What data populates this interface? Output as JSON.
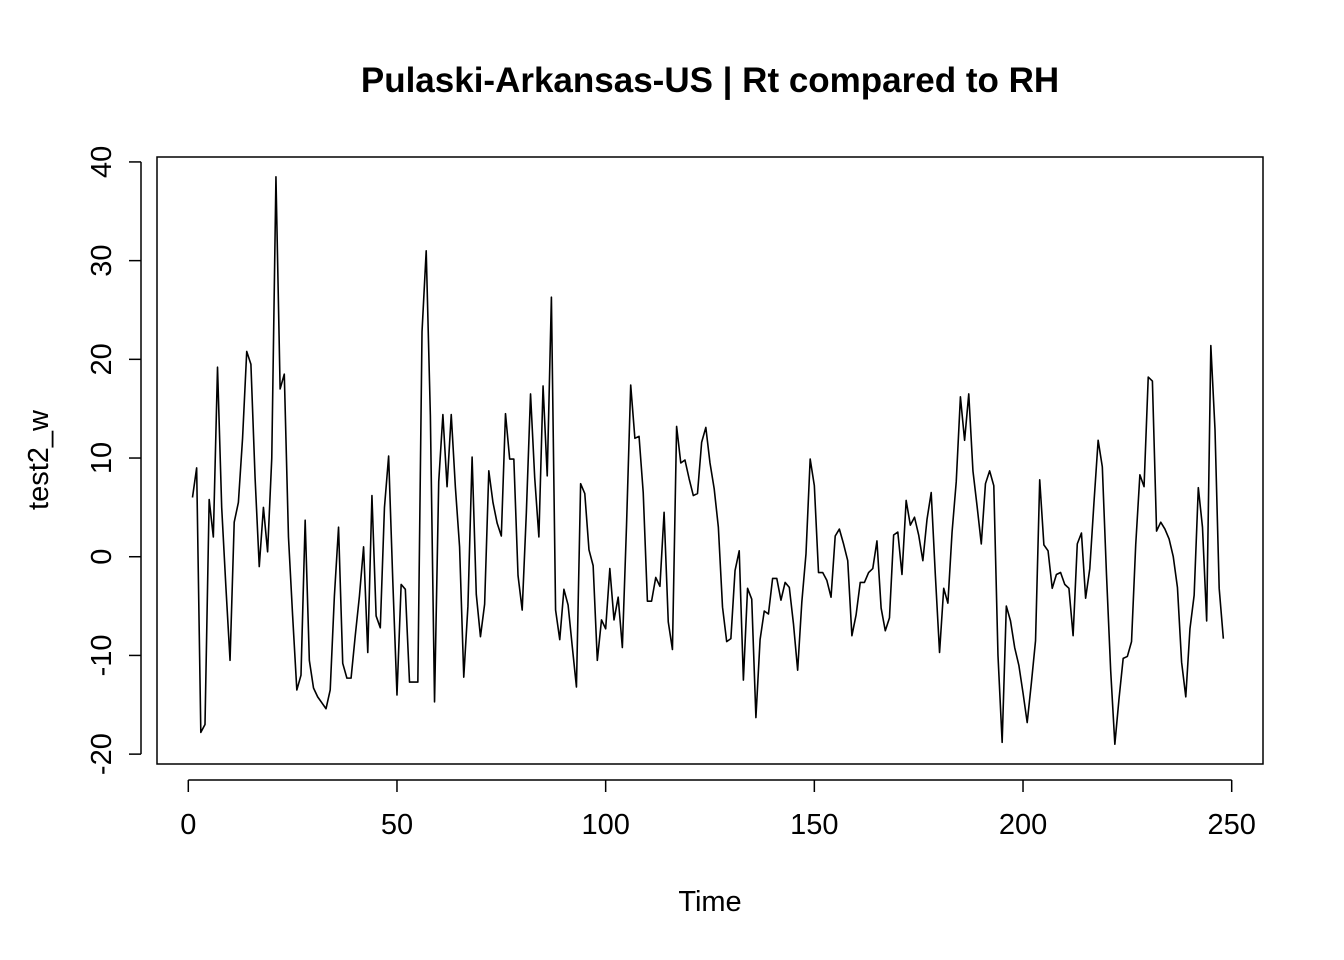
{
  "chart_data": {
    "type": "line",
    "title": "Pulaski-Arkansas-US | Rt compared to RH",
    "xlabel": "Time",
    "ylabel": "test2_w",
    "xlim": [
      -7.5,
      257.5
    ],
    "ylim": [
      -21,
      40.5
    ],
    "xticks": [
      0,
      50,
      100,
      150,
      200,
      250
    ],
    "yticks": [
      -20,
      -10,
      0,
      10,
      20,
      30,
      40
    ],
    "xtick_labels": [
      "0",
      "50",
      "100",
      "150",
      "200",
      "250"
    ],
    "ytick_labels": [
      "-20",
      "-10",
      "0",
      "10",
      "20",
      "30",
      "40"
    ],
    "grid": false,
    "series": [
      {
        "color": "#000000",
        "x": [
          1,
          2,
          3,
          4,
          5,
          6,
          7,
          8,
          9,
          10,
          11,
          12,
          13,
          14,
          15,
          16,
          17,
          18,
          19,
          20,
          21,
          22,
          23,
          24,
          25,
          26,
          27,
          28,
          29,
          30,
          31,
          32,
          33,
          34,
          35,
          36,
          37,
          38,
          39,
          40,
          41,
          42,
          43,
          44,
          45,
          46,
          47,
          48,
          49,
          50,
          51,
          52,
          53,
          54,
          55,
          56,
          57,
          58,
          59,
          60,
          61,
          62,
          63,
          64,
          65,
          66,
          67,
          68,
          69,
          70,
          71,
          72,
          73,
          74,
          75,
          76,
          77,
          78,
          79,
          80,
          81,
          82,
          83,
          84,
          85,
          86,
          87,
          88,
          89,
          90,
          91,
          92,
          93,
          94,
          95,
          96,
          97,
          98,
          99,
          100,
          101,
          102,
          103,
          104,
          105,
          106,
          107,
          108,
          109,
          110,
          111,
          112,
          113,
          114,
          115,
          116,
          117,
          118,
          119,
          120,
          121,
          122,
          123,
          124,
          125,
          126,
          127,
          128,
          129,
          130,
          131,
          132,
          133,
          134,
          135,
          136,
          137,
          138,
          139,
          140,
          141,
          142,
          143,
          144,
          145,
          146,
          147,
          148,
          149,
          150,
          151,
          152,
          153,
          154,
          155,
          156,
          157,
          158,
          159,
          160,
          161,
          162,
          163,
          164,
          165,
          166,
          167,
          168,
          169,
          170,
          171,
          172,
          173,
          174,
          175,
          176,
          177,
          178,
          179,
          180,
          181,
          182,
          183,
          184,
          185,
          186,
          187,
          188,
          189,
          190,
          191,
          192,
          193,
          194,
          195,
          196,
          197,
          198,
          199,
          200,
          201,
          202,
          203,
          204,
          205,
          206,
          207,
          208,
          209,
          210,
          211,
          212,
          213,
          214,
          215,
          216,
          217,
          218,
          219,
          220,
          221,
          222,
          223,
          224,
          225,
          226,
          227,
          228,
          229,
          230,
          231,
          232,
          233,
          234,
          235,
          236,
          237,
          238,
          239,
          240,
          241,
          242,
          243,
          244,
          245,
          246,
          247,
          248
        ],
        "y": [
          6,
          9,
          -17.8,
          -17,
          5.8,
          2,
          19.2,
          5,
          -3,
          -10.5,
          3.5,
          5.5,
          12,
          20.8,
          19.5,
          8,
          -1,
          5,
          0.5,
          10,
          38.5,
          17,
          18.5,
          2,
          -6,
          -13.5,
          -12,
          3.7,
          -10.5,
          -13.3,
          -14.2,
          -14.8,
          -15.4,
          -13.5,
          -4,
          3,
          -10.8,
          -12.3,
          -12.3,
          -8,
          -4,
          1,
          -9.7,
          6.2,
          -6,
          -7.2,
          5,
          10.2,
          -2.5,
          -14,
          -2.8,
          -3.3,
          -12.7,
          -12.7,
          -12.7,
          22.8,
          31,
          14.3,
          -14.7,
          7.6,
          14.4,
          7.1,
          14.4,
          7,
          1,
          -12.2,
          -5,
          10.1,
          -3.8,
          -8.1,
          -4.8,
          8.7,
          5.5,
          3.4,
          2.1,
          14.5,
          9.9,
          9.9,
          -1.9,
          -5.4,
          4.5,
          16.5,
          8,
          2,
          17.3,
          8.2,
          26.3,
          -5.4,
          -8.4,
          -3.3,
          -4.9,
          -9.1,
          -13.2,
          7.4,
          6.4,
          0.7,
          -0.9,
          -10.5,
          -6.4,
          -7.3,
          -1.2,
          -6.4,
          -4.1,
          -9.2,
          3.2,
          17.4,
          12,
          12.2,
          6.5,
          -4.5,
          -4.5,
          -2.1,
          -3,
          4.5,
          -6.6,
          -9.4,
          13.2,
          9.5,
          9.8,
          7.9,
          6.2,
          6.4,
          11.6,
          13.1,
          9.5,
          6.9,
          3,
          -5.1,
          -8.6,
          -8.3,
          -1.4,
          0.6,
          -12.5,
          -3.2,
          -4.3,
          -16.3,
          -8.4,
          -5.5,
          -5.8,
          -2.2,
          -2.2,
          -4.4,
          -2.6,
          -3.1,
          -6.8,
          -11.5,
          -4.6,
          0.3,
          9.9,
          7.2,
          -1.6,
          -1.6,
          -2.4,
          -4.1,
          2.1,
          2.8,
          1.3,
          -0.4,
          -8,
          -5.9,
          -2.6,
          -2.6,
          -1.6,
          -1.2,
          1.6,
          -5.2,
          -7.5,
          -6.2,
          2.2,
          2.5,
          -1.8,
          5.7,
          3.2,
          4,
          2.2,
          -0.4,
          3.8,
          6.5,
          -1.9,
          -9.7,
          -3.2,
          -4.7,
          2.5,
          7.6,
          16.2,
          11.8,
          16.5,
          8.7,
          5.1,
          1.3,
          7.4,
          8.7,
          7.2,
          -10,
          -18.8,
          -5,
          -6.5,
          -9.2,
          -11,
          -13.8,
          -16.8,
          -12.8,
          -8.5,
          7.8,
          1.2,
          0.6,
          -3.2,
          -1.8,
          -1.6,
          -2.8,
          -3.2,
          -8,
          1.3,
          2.4,
          -4.2,
          -1.2,
          5.5,
          11.8,
          9.1,
          -1.8,
          -11.5,
          -19,
          -14.4,
          -10.3,
          -10.1,
          -8.6,
          1.2,
          8.3,
          7.1,
          18.2,
          17.8,
          2.6,
          3.5,
          2.8,
          1.8,
          0,
          -3.1,
          -10.7,
          -14.2,
          -7.3,
          -3.9,
          7,
          3,
          -6.5,
          21.4,
          12.9,
          -3.2,
          -8.3
        ]
      }
    ]
  }
}
